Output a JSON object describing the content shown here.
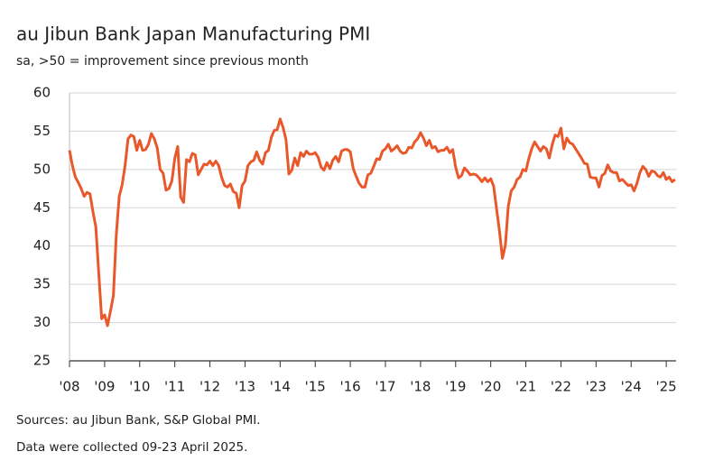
{
  "chart_data": {
    "type": "line",
    "title": "au Jibun Bank Japan Manufacturing PMI",
    "subtitle": "sa, >50 = improvement since previous month",
    "notes": [
      "Sources: au Jibun Bank, S&P Global PMI.",
      "Data were collected 09-23 April 2025."
    ],
    "xlim": [
      2008,
      2025.28
    ],
    "ylim": [
      25,
      60
    ],
    "yticks": [
      25,
      30,
      35,
      40,
      45,
      50,
      55,
      60
    ],
    "xticks": [
      {
        "value": 2008,
        "label": "'08"
      },
      {
        "value": 2009,
        "label": "'09"
      },
      {
        "value": 2010,
        "label": "'10"
      },
      {
        "value": 2011,
        "label": "'11"
      },
      {
        "value": 2012,
        "label": "'12"
      },
      {
        "value": 2013,
        "label": "'13"
      },
      {
        "value": 2014,
        "label": "'14"
      },
      {
        "value": 2015,
        "label": "'15"
      },
      {
        "value": 2016,
        "label": "'16"
      },
      {
        "value": 2017,
        "label": "'17"
      },
      {
        "value": 2018,
        "label": "'18"
      },
      {
        "value": 2019,
        "label": "'19"
      },
      {
        "value": 2020,
        "label": "'20"
      },
      {
        "value": 2021,
        "label": "'21"
      },
      {
        "value": 2022,
        "label": "'22"
      },
      {
        "value": 2023,
        "label": "'23"
      },
      {
        "value": 2024,
        "label": "'24"
      },
      {
        "value": 2025,
        "label": "'25"
      }
    ],
    "grid": true,
    "x": [
      2008,
      2008.083,
      2008.167,
      2008.25,
      2008.333,
      2008.417,
      2008.5,
      2008.583,
      2008.667,
      2008.75,
      2008.833,
      2008.917,
      2009,
      2009.083,
      2009.167,
      2009.25,
      2009.333,
      2009.417,
      2009.5,
      2009.583,
      2009.667,
      2009.75,
      2009.833,
      2009.917,
      2010,
      2010.083,
      2010.167,
      2010.25,
      2010.333,
      2010.417,
      2010.5,
      2010.583,
      2010.667,
      2010.75,
      2010.833,
      2010.917,
      2011,
      2011.083,
      2011.167,
      2011.25,
      2011.333,
      2011.417,
      2011.5,
      2011.583,
      2011.667,
      2011.75,
      2011.833,
      2011.917,
      2012,
      2012.083,
      2012.167,
      2012.25,
      2012.333,
      2012.417,
      2012.5,
      2012.583,
      2012.667,
      2012.75,
      2012.833,
      2012.917,
      2013,
      2013.083,
      2013.167,
      2013.25,
      2013.333,
      2013.417,
      2013.5,
      2013.583,
      2013.667,
      2013.75,
      2013.833,
      2013.917,
      2014,
      2014.083,
      2014.167,
      2014.25,
      2014.333,
      2014.417,
      2014.5,
      2014.583,
      2014.667,
      2014.75,
      2014.833,
      2014.917,
      2015,
      2015.083,
      2015.167,
      2015.25,
      2015.333,
      2015.417,
      2015.5,
      2015.583,
      2015.667,
      2015.75,
      2015.833,
      2015.917,
      2016,
      2016.083,
      2016.167,
      2016.25,
      2016.333,
      2016.417,
      2016.5,
      2016.583,
      2016.667,
      2016.75,
      2016.833,
      2016.917,
      2017,
      2017.083,
      2017.167,
      2017.25,
      2017.333,
      2017.417,
      2017.5,
      2017.583,
      2017.667,
      2017.75,
      2017.833,
      2017.917,
      2018,
      2018.083,
      2018.167,
      2018.25,
      2018.333,
      2018.417,
      2018.5,
      2018.583,
      2018.667,
      2018.75,
      2018.833,
      2018.917,
      2019,
      2019.083,
      2019.167,
      2019.25,
      2019.333,
      2019.417,
      2019.5,
      2019.583,
      2019.667,
      2019.75,
      2019.833,
      2019.917,
      2020,
      2020.083,
      2020.167,
      2020.25,
      2020.333,
      2020.417,
      2020.5,
      2020.583,
      2020.667,
      2020.75,
      2020.833,
      2020.917,
      2021,
      2021.083,
      2021.167,
      2021.25,
      2021.333,
      2021.417,
      2021.5,
      2021.583,
      2021.667,
      2021.75,
      2021.833,
      2021.917,
      2022,
      2022.083,
      2022.167,
      2022.25,
      2022.333,
      2022.417,
      2022.5,
      2022.583,
      2022.667,
      2022.75,
      2022.833,
      2022.917,
      2023,
      2023.083,
      2023.167,
      2023.25,
      2023.333,
      2023.417,
      2023.5,
      2023.583,
      2023.667,
      2023.75,
      2023.833,
      2023.917,
      2024,
      2024.083,
      2024.167,
      2024.25,
      2024.333,
      2024.417,
      2024.5,
      2024.583,
      2024.667,
      2024.75,
      2024.833,
      2024.917,
      2025,
      2025.083,
      2025.167,
      2025.25
    ],
    "series": [
      {
        "color": "#e9582a",
        "values": [
          52.5,
          50.5,
          49.0,
          48.3,
          47.5,
          46.5,
          47.0,
          46.8,
          44.5,
          42.5,
          36.5,
          30.5,
          31.0,
          29.6,
          31.5,
          33.5,
          41.5,
          46.5,
          48.0,
          50.5,
          54.0,
          54.5,
          54.3,
          52.5,
          53.8,
          52.5,
          52.6,
          53.3,
          54.7,
          54.0,
          52.8,
          50.0,
          49.5,
          47.3,
          47.5,
          48.5,
          51.5,
          53.0,
          46.4,
          45.7,
          51.3,
          51.0,
          52.1,
          51.9,
          49.3,
          50.0,
          50.7,
          50.6,
          51.1,
          50.5,
          51.1,
          50.5,
          49.0,
          47.9,
          47.7,
          48.1,
          47.1,
          46.9,
          45.0,
          47.9,
          48.5,
          50.5,
          51.0,
          51.2,
          52.3,
          51.2,
          50.7,
          52.2,
          52.5,
          54.2,
          55.1,
          55.2,
          56.6,
          55.5,
          53.9,
          49.4,
          49.9,
          51.5,
          50.5,
          52.2,
          51.7,
          52.4,
          52.0,
          52.0,
          52.2,
          51.6,
          50.3,
          49.9,
          50.9,
          50.1,
          51.2,
          51.7,
          51.0,
          52.4,
          52.6,
          52.6,
          52.3,
          50.1,
          49.1,
          48.2,
          47.7,
          47.7,
          49.3,
          49.5,
          50.4,
          51.4,
          51.3,
          52.4,
          52.7,
          53.3,
          52.4,
          52.7,
          53.1,
          52.4,
          52.1,
          52.2,
          52.9,
          52.8,
          53.6,
          54.0,
          54.8,
          54.1,
          53.1,
          53.8,
          52.8,
          53.0,
          52.3,
          52.5,
          52.5,
          52.9,
          52.2,
          52.6,
          50.3,
          48.9,
          49.2,
          50.2,
          49.8,
          49.3,
          49.4,
          49.3,
          48.9,
          48.4,
          48.9,
          48.4,
          48.8,
          47.8,
          44.8,
          41.9,
          38.4,
          40.1,
          45.2,
          47.2,
          47.7,
          48.7,
          49.0,
          50.0,
          49.8,
          51.4,
          52.7,
          53.6,
          53.0,
          52.4,
          53.0,
          52.7,
          51.5,
          53.2,
          54.5,
          54.3,
          55.4,
          52.7,
          54.1,
          53.5,
          53.3,
          52.7,
          52.1,
          51.5,
          50.8,
          50.7,
          49.0,
          48.9,
          48.9,
          47.7,
          49.2,
          49.5,
          50.6,
          49.8,
          49.6,
          49.6,
          48.5,
          48.7,
          48.3,
          47.9,
          48.0,
          47.2,
          48.2,
          49.6,
          50.4,
          50.0,
          49.1,
          49.8,
          49.7,
          49.2,
          49.0,
          49.6,
          48.7,
          49.0,
          48.4,
          48.7
        ]
      }
    ]
  }
}
